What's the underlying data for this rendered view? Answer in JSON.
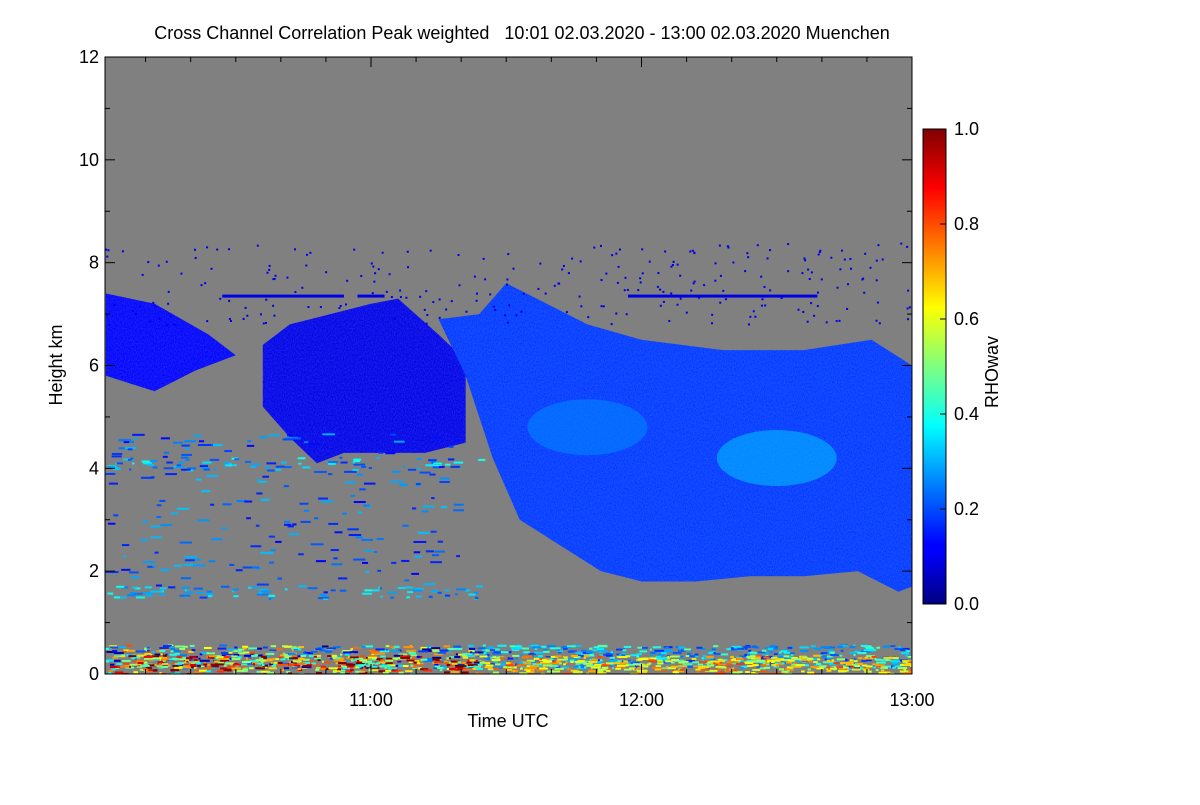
{
  "chart_data": {
    "type": "heatmap",
    "title": "Cross Channel Correlation Peak weighted   10:01 02.03.2020 - 13:00 02.03.2020 Muenchen",
    "xlabel": "Time UTC",
    "ylabel": "Height km",
    "x_range_hours": [
      10.0167,
      13.0
    ],
    "ylim": [
      0,
      12
    ],
    "x_ticks": [
      {
        "label": "11:00",
        "value": 11.0
      },
      {
        "label": "12:00",
        "value": 12.0
      },
      {
        "label": "13:00",
        "value": 13.0
      }
    ],
    "y_ticks": [
      {
        "label": "0",
        "value": 0
      },
      {
        "label": "2",
        "value": 2
      },
      {
        "label": "4",
        "value": 4
      },
      {
        "label": "6",
        "value": 6
      },
      {
        "label": "8",
        "value": 8
      },
      {
        "label": "10",
        "value": 10
      },
      {
        "label": "12",
        "value": 12
      }
    ],
    "background_color": "#808080",
    "colorbar": {
      "label": "RHOwav",
      "range": [
        0.0,
        1.0
      ],
      "ticks": [
        {
          "label": "0.0",
          "value": 0.0
        },
        {
          "label": "0.2",
          "value": 0.2
        },
        {
          "label": "0.4",
          "value": 0.4
        },
        {
          "label": "0.6",
          "value": 0.6
        },
        {
          "label": "0.8",
          "value": 0.8
        },
        {
          "label": "1.0",
          "value": 1.0
        }
      ],
      "colormap": "jet"
    },
    "cloud_regions": [
      {
        "id": "early-layer",
        "rho": 0.12,
        "top": [
          [
            10.02,
            7.4
          ],
          [
            10.2,
            7.2
          ],
          [
            10.4,
            6.6
          ],
          [
            10.5,
            6.2
          ]
        ],
        "bottom": [
          [
            10.02,
            5.8
          ],
          [
            10.2,
            5.5
          ],
          [
            10.35,
            5.9
          ],
          [
            10.5,
            6.2
          ]
        ]
      },
      {
        "id": "mid-layer",
        "rho": 0.1,
        "top": [
          [
            10.6,
            6.4
          ],
          [
            10.7,
            6.8
          ],
          [
            10.85,
            7.0
          ],
          [
            11.0,
            7.2
          ],
          [
            11.1,
            7.3
          ],
          [
            11.25,
            6.6
          ],
          [
            11.35,
            6.1
          ]
        ],
        "bottom": [
          [
            10.6,
            5.2
          ],
          [
            10.7,
            4.6
          ],
          [
            10.8,
            4.1
          ],
          [
            10.9,
            4.3
          ],
          [
            11.0,
            4.3
          ],
          [
            11.1,
            4.3
          ],
          [
            11.2,
            4.3
          ],
          [
            11.35,
            4.5
          ]
        ]
      },
      {
        "id": "main-layer",
        "rho": 0.18,
        "top": [
          [
            11.25,
            6.9
          ],
          [
            11.4,
            7.0
          ],
          [
            11.5,
            7.6
          ],
          [
            11.65,
            7.2
          ],
          [
            11.8,
            6.8
          ],
          [
            12.0,
            6.5
          ],
          [
            12.3,
            6.3
          ],
          [
            12.6,
            6.3
          ],
          [
            12.85,
            6.5
          ],
          [
            13.0,
            6.0
          ]
        ],
        "bottom": [
          [
            11.35,
            5.8
          ],
          [
            11.45,
            4.2
          ],
          [
            11.55,
            3.0
          ],
          [
            11.7,
            2.5
          ],
          [
            11.85,
            2.0
          ],
          [
            12.0,
            1.8
          ],
          [
            12.2,
            1.8
          ],
          [
            12.4,
            1.9
          ],
          [
            12.6,
            1.9
          ],
          [
            12.8,
            2.0
          ],
          [
            12.95,
            1.6
          ],
          [
            13.0,
            1.7
          ]
        ]
      }
    ],
    "brighter_patches": [
      {
        "center": [
          12.5,
          4.2
        ],
        "rho": 0.32
      },
      {
        "center": [
          11.8,
          4.8
        ],
        "rho": 0.26
      }
    ],
    "thin_layer_near_top": {
      "height": 7.35,
      "rho": 0.1,
      "x_segments": [
        [
          10.45,
          10.9
        ],
        [
          10.95,
          11.05
        ],
        [
          11.95,
          12.65
        ]
      ]
    },
    "noise_bands": [
      {
        "height": 4.1,
        "rho": 0.3
      },
      {
        "height": 1.6,
        "rho": 0.3
      },
      {
        "height": 0.35,
        "rho": 0.25
      },
      {
        "height": 0.15,
        "rho": 0.6
      }
    ],
    "grid": false,
    "legend": "colorbar-right"
  }
}
